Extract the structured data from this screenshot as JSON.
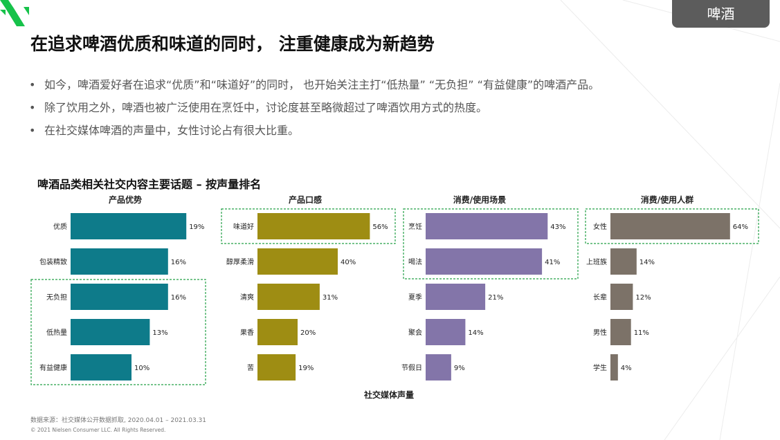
{
  "header": {
    "tag": "啤酒",
    "title": "在追求啤酒优质和味道的同时， 注重健康成为新趋势"
  },
  "bullets": [
    "如今，啤酒爱好者在追求“优质”和“味道好”的同时， 也开始关注主打“低热量” “无负担” “有益健康”的啤酒产品。",
    "除了饮用之外，啤酒也被广泛使用在烹饪中，讨论度甚至略微超过了啤酒饮用方式的热度。",
    "在社交媒体啤酒的声量中，女性讨论占有很大比重。"
  ],
  "bullet_marker": "•",
  "colors": {
    "teal": "#0e7b8a",
    "olive": "#9e8d13",
    "purple": "#8375a9",
    "gray": "#7c7268",
    "highlight": "#23a046"
  },
  "chart_data": [
    {
      "type": "bar",
      "orientation": "horizontal",
      "title": "产品优势",
      "categories": [
        "优质",
        "包装精致",
        "无负担",
        "低热量",
        "有益健康"
      ],
      "values": [
        19,
        16,
        16,
        13,
        10
      ],
      "value_labels": [
        "19%",
        "16%",
        "16%",
        "13%",
        "10%"
      ],
      "color": "#0e7b8a",
      "highlight_groups": [
        [
          2,
          4
        ]
      ]
    },
    {
      "type": "bar",
      "orientation": "horizontal",
      "title": "产品口感",
      "categories": [
        "味道好",
        "醇厚柔滑",
        "清爽",
        "果香",
        "苦"
      ],
      "values": [
        56,
        40,
        31,
        20,
        19
      ],
      "value_labels": [
        "56%",
        "40%",
        "31%",
        "20%",
        "19%"
      ],
      "color": "#9e8d13",
      "highlight_groups": [
        [
          0,
          0
        ]
      ]
    },
    {
      "type": "bar",
      "orientation": "horizontal",
      "title": "消费/使用场景",
      "categories": [
        "烹饪",
        "喝法",
        "夏季",
        "聚会",
        "节假日"
      ],
      "values": [
        43,
        41,
        21,
        14,
        9
      ],
      "value_labels": [
        "43%",
        "41%",
        "21%",
        "14%",
        "9%"
      ],
      "color": "#8375a9",
      "highlight_groups": [
        [
          0,
          1
        ]
      ]
    },
    {
      "type": "bar",
      "orientation": "horizontal",
      "title": "消费/使用人群",
      "categories": [
        "女性",
        "上班族",
        "长辈",
        "男性",
        "学生"
      ],
      "values": [
        64,
        14,
        12,
        11,
        4
      ],
      "value_labels": [
        "64%",
        "14%",
        "12%",
        "11%",
        "4%"
      ],
      "color": "#7c7268",
      "highlight_groups": [
        [
          0,
          0
        ]
      ]
    }
  ],
  "charts_title": "啤酒品类相关社交内容主要话题 – 按声量排名",
  "shared_xlabel": "社交媒体声量",
  "footer": {
    "source": "数据来源：社交媒体公开数据抓取, 2020.04.01 – 2021.03.31",
    "copyright": "© 2021 Nielsen Consumer LLC. All Rights Reserved."
  }
}
